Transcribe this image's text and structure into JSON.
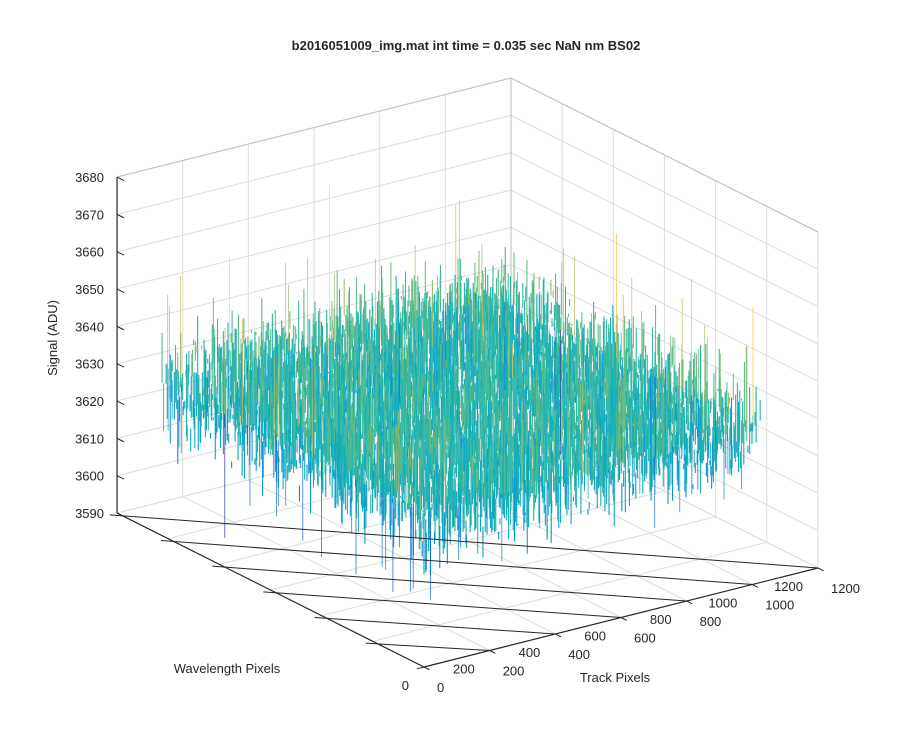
{
  "chart_data": {
    "type": "surface",
    "title": "b2016051009_img.mat int time = 0.035 sec  NaN nm BS02",
    "xlabel": "Track Pixels",
    "ylabel": "Wavelength Pixels",
    "zlabel": "Signal (ADU)",
    "xlim": [
      0,
      1200
    ],
    "ylim": [
      0,
      1200
    ],
    "zlim": [
      3590,
      3680
    ],
    "x_ticks": [
      "0",
      "200",
      "400",
      "600",
      "800",
      "1000",
      "1200"
    ],
    "y_ticks": [
      "0",
      "200",
      "400",
      "600",
      "800",
      "1000",
      "1200"
    ],
    "z_ticks": [
      "3590",
      "3600",
      "3610",
      "3620",
      "3630",
      "3640",
      "3650",
      "3660",
      "3670",
      "3680"
    ],
    "grid": true,
    "colormap": "parula",
    "data_extent": {
      "track_pixels": [
        0,
        1024
      ],
      "wavelength_pixels": [
        0,
        1024
      ]
    },
    "signal_mean": 3631,
    "signal_noise_range": [
      3592,
      3675
    ],
    "colors": {
      "low": "#1f9bd8",
      "mid": "#3db6a8",
      "high": "#e6c93b"
    }
  }
}
